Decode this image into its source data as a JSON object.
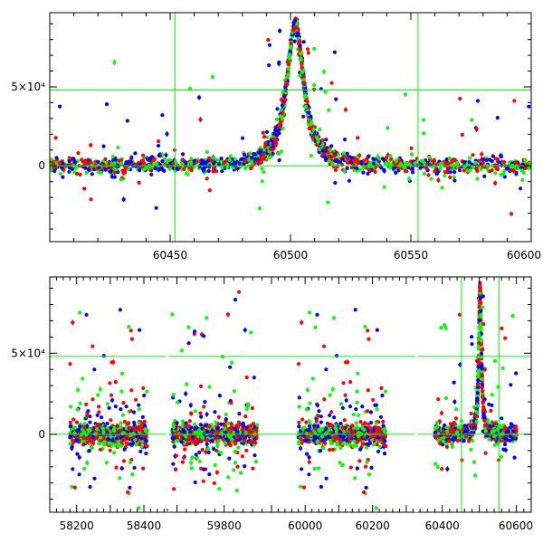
{
  "chart_data": [
    {
      "type": "scatter",
      "title": "",
      "xlabel": "",
      "ylabel": "",
      "xlim": [
        60400,
        60600
      ],
      "ylim": [
        -48000,
        97000
      ],
      "x_ticks": [
        {
          "value": 60450,
          "label": "60450"
        },
        {
          "value": 60500,
          "label": "60500"
        },
        {
          "value": 60550,
          "label": "60550"
        },
        {
          "value": 60600,
          "label": "60600"
        }
      ],
      "y_ticks": [
        {
          "value": 0,
          "label": "0"
        },
        {
          "value": 50000,
          "label": "5×10⁴"
        }
      ],
      "reference_lines": {
        "vertical": [
          60452,
          60553
        ],
        "horizontal": [
          0,
          48000
        ]
      },
      "series_colors": [
        "#ff0000",
        "#0000ff",
        "#00ff00"
      ],
      "line_color": "#00ff00",
      "event": {
        "peak_x": 60502,
        "peak_y": 90000,
        "baseline": 0,
        "width_days": 4.5
      }
    },
    {
      "type": "scatter",
      "title": "",
      "xlabel": "",
      "ylabel": "",
      "ylim": [
        -48000,
        97000
      ],
      "segments": [
        {
          "xlim": [
            58120,
            58470
          ],
          "ticks": [
            {
              "value": 58200,
              "label": "58200"
            },
            {
              "value": 58400,
              "label": "58400"
            }
          ],
          "data_range": [
            58180,
            58410
          ]
        },
        {
          "xlim": [
            59680,
            59900
          ],
          "ticks": [
            {
              "value": 59800,
              "label": "59800"
            }
          ],
          "data_range": [
            59690,
            59870
          ]
        },
        {
          "xlim": [
            59900,
            60330
          ],
          "ticks": [
            {
              "value": 60000,
              "label": "60000"
            },
            {
              "value": 60200,
              "label": "60200"
            }
          ],
          "data_range": [
            59980,
            60240
          ]
        },
        {
          "xlim": [
            60330,
            60640
          ],
          "ticks": [
            {
              "value": 60400,
              "label": "60400"
            },
            {
              "value": 60600,
              "label": "60600"
            }
          ],
          "data_range": [
            60380,
            60600
          ]
        }
      ],
      "y_ticks": [
        {
          "value": 0,
          "label": "0"
        },
        {
          "value": 50000,
          "label": "5×10⁴"
        }
      ],
      "reference_lines": {
        "vertical": [
          60452,
          60553
        ],
        "horizontal": [
          0,
          48000
        ]
      },
      "series_colors": [
        "#ff0000",
        "#0000ff",
        "#00ff00"
      ],
      "event": {
        "peak_x": 60502,
        "peak_y": 90000,
        "baseline": 0,
        "width_days": 4.5
      }
    }
  ]
}
